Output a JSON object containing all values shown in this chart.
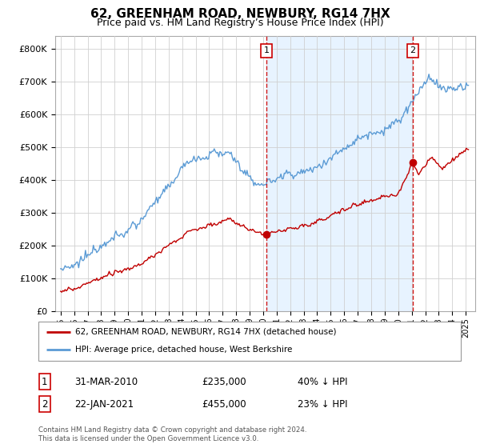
{
  "title": "62, GREENHAM ROAD, NEWBURY, RG14 7HX",
  "subtitle": "Price paid vs. HM Land Registry’s House Price Index (HPI)",
  "legend_line1": "62, GREENHAM ROAD, NEWBURY, RG14 7HX (detached house)",
  "legend_line2": "HPI: Average price, detached house, West Berkshire",
  "transaction1_label": "1",
  "transaction1_date": "31-MAR-2010",
  "transaction1_price": "£235,000",
  "transaction1_hpi": "40% ↓ HPI",
  "transaction2_label": "2",
  "transaction2_date": "22-JAN-2021",
  "transaction2_price": "£455,000",
  "transaction2_hpi": "23% ↓ HPI",
  "footer": "Contains HM Land Registry data © Crown copyright and database right 2024.\nThis data is licensed under the Open Government Licence v3.0.",
  "hpi_color": "#5b9bd5",
  "shade_color": "#ddeeff",
  "price_color": "#c00000",
  "vline_color": "#cc0000",
  "transaction1_x": 2010.25,
  "transaction2_x": 2021.06
}
